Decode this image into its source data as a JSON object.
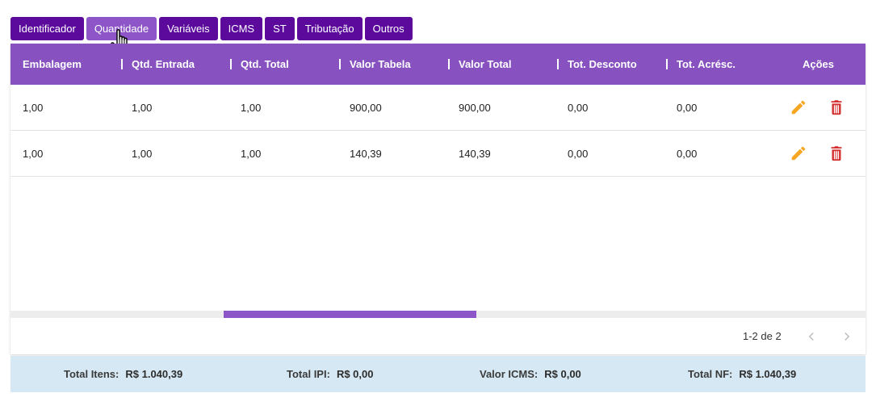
{
  "tabs": [
    {
      "label": "Identificador"
    },
    {
      "label": "Quantidade"
    },
    {
      "label": "Variáveis"
    },
    {
      "label": "ICMS"
    },
    {
      "label": "ST"
    },
    {
      "label": "Tributação"
    },
    {
      "label": "Outros"
    }
  ],
  "active_tab": "Quantidade",
  "table": {
    "columns": [
      "Embalagem",
      "Qtd. Entrada",
      "Qtd. Total",
      "Valor Tabela",
      "Valor Total",
      "Tot. Desconto",
      "Tot. Acrésc.",
      "Ações"
    ],
    "rows": [
      [
        "1,00",
        "1,00",
        "1,00",
        "900,00",
        "900,00",
        "0,00",
        "0,00"
      ],
      [
        "1,00",
        "1,00",
        "1,00",
        "140,39",
        "140,39",
        "0,00",
        "0,00"
      ]
    ],
    "row_actions": [
      "edit-icon",
      "delete-icon"
    ]
  },
  "pagination": {
    "label": "1-2 de 2",
    "prev_icon": "chevron-left-icon",
    "next_icon": "chevron-right-icon"
  },
  "totals": {
    "itens_label": "Total Itens:",
    "itens_value": "R$ 1.040,39",
    "ipi_label": "Total IPI:",
    "ipi_value": "R$ 0,00",
    "icms_label": "Valor ICMS:",
    "icms_value": "R$ 0,00",
    "nf_label": "Total NF:",
    "nf_value": "R$ 1.040,39"
  },
  "colors": {
    "tab_bg": "#5b0a9c",
    "tab_active_bg": "#8d55c7",
    "header_bg": "#8752c0",
    "edit_icon": "#f5a623",
    "delete_icon": "#d32f2f",
    "footer_bg": "#d6e8f3"
  }
}
